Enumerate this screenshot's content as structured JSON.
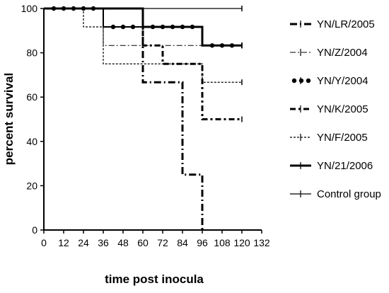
{
  "chart_data": {
    "type": "line",
    "title": "",
    "xlabel": "time post inocula",
    "ylabel": "percent survival",
    "xlim": [
      0,
      132
    ],
    "ylim": [
      0,
      100
    ],
    "x_ticks": [
      0,
      12,
      24,
      36,
      48,
      60,
      72,
      84,
      96,
      108,
      120,
      132
    ],
    "y_ticks": [
      0,
      20,
      40,
      60,
      80,
      100
    ],
    "legend_position": "right",
    "grid": false,
    "series": [
      {
        "name": "YN/LR/2005",
        "style": "dash-dot-thick",
        "steps": [
          [
            0,
            100
          ],
          [
            24,
            100
          ],
          [
            24,
            100
          ],
          [
            60,
            100
          ],
          [
            60,
            66.7
          ],
          [
            84,
            66.7
          ],
          [
            84,
            25
          ],
          [
            96,
            25
          ],
          [
            96,
            0
          ]
        ]
      },
      {
        "name": "YN/Z/2004",
        "style": "dash-dot-thin",
        "steps": [
          [
            0,
            100
          ],
          [
            36,
            100
          ],
          [
            36,
            83.3
          ],
          [
            120,
            83.3
          ]
        ]
      },
      {
        "name": "YN/Y/2004",
        "style": "dots",
        "steps": [
          [
            0,
            100
          ],
          [
            36,
            100
          ],
          [
            36,
            91.7
          ],
          [
            60,
            91.7
          ],
          [
            60,
            91.7
          ],
          [
            96,
            91.7
          ],
          [
            96,
            83.3
          ],
          [
            120,
            83.3
          ]
        ]
      },
      {
        "name": "YN/K/2005",
        "style": "dash-dot-medium",
        "steps": [
          [
            0,
            100
          ],
          [
            60,
            100
          ],
          [
            60,
            83.3
          ],
          [
            72,
            83.3
          ],
          [
            72,
            75
          ],
          [
            96,
            75
          ],
          [
            96,
            50
          ],
          [
            120,
            50
          ]
        ]
      },
      {
        "name": "YN/F/2005",
        "style": "dashed-thin",
        "steps": [
          [
            0,
            100
          ],
          [
            24,
            100
          ],
          [
            24,
            91.7
          ],
          [
            36,
            91.7
          ],
          [
            36,
            75
          ],
          [
            96,
            75
          ],
          [
            96,
            66.7
          ],
          [
            120,
            66.7
          ]
        ]
      },
      {
        "name": "YN/21/2006",
        "style": "solid-thick",
        "steps": [
          [
            0,
            100
          ],
          [
            60,
            100
          ],
          [
            60,
            91.7
          ],
          [
            96,
            91.7
          ],
          [
            96,
            83.3
          ],
          [
            120,
            83.3
          ]
        ]
      },
      {
        "name": "Control group",
        "style": "solid-thin",
        "steps": [
          [
            0,
            100
          ],
          [
            120,
            100
          ]
        ]
      }
    ]
  }
}
